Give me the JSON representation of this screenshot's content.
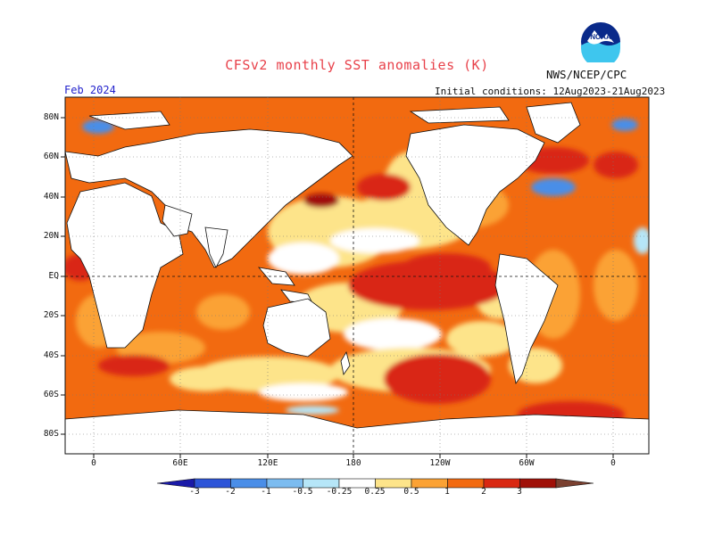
{
  "title": "CFSv2 monthly SST anomalies (K)",
  "agency": "NWS/NCEP/CPC",
  "logo_text": "NOAA",
  "month": "Feb 2024",
  "initial_conditions": "Initial conditions: 12Aug2023-21Aug2023",
  "lat_labels": [
    "80N",
    "60N",
    "40N",
    "20N",
    "EQ",
    "20S",
    "40S",
    "60S",
    "80S"
  ],
  "lon_labels": [
    "0",
    "60E",
    "120E",
    "180",
    "120W",
    "60W",
    "0"
  ],
  "colorbar": {
    "ticks": [
      "-3",
      "-2",
      "-1",
      "-0.5",
      "-0.25",
      "0.25",
      "0.5",
      "1",
      "2",
      "3"
    ],
    "colors": [
      "#1a1aa8",
      "#2d55d8",
      "#4a8ee8",
      "#7cbcf0",
      "#b6e6f8",
      "#ffffff",
      "#fde48a",
      "#fba234",
      "#f26a10",
      "#d92812",
      "#a01008",
      "#7a4030"
    ]
  }
}
